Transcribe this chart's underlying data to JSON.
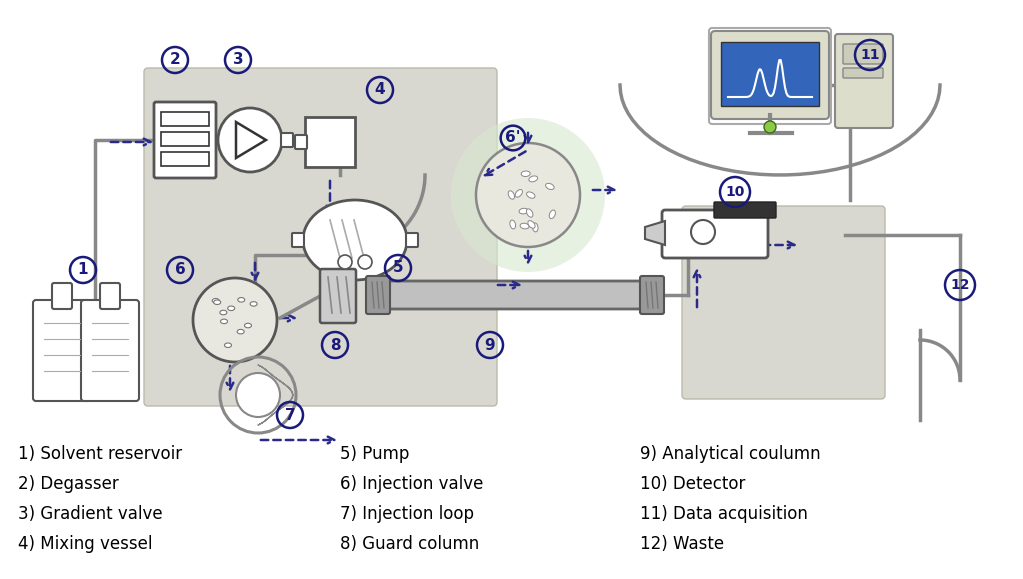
{
  "background_color": "#ffffff",
  "figure_size": [
    10.23,
    5.79
  ],
  "dpi": 100,
  "legend_col1": [
    "1) Solvent reservoir",
    "2) Degasser",
    "3) Gradient valve",
    "4) Mixing vessel"
  ],
  "legend_col2": [
    "5) Pump",
    "6) Injection valve",
    "7) Injection loop",
    "8) Guard column"
  ],
  "legend_col3": [
    "9) Analytical coulumn",
    "10) Detector",
    "11) Data acquisition",
    "12) Waste"
  ],
  "arrow_color": "#2a2a8a",
  "text_color": "#000000",
  "circle_label_color": "#1a1a7a",
  "box_bg": "#d8d8d0",
  "font_size_legend": 12
}
